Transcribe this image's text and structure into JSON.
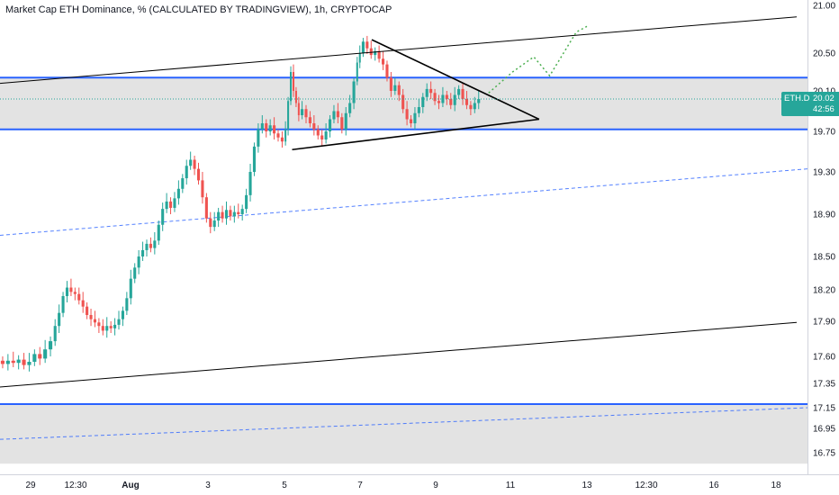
{
  "chart_data": {
    "type": "candlestick",
    "title": "Market Cap ETH Dominance, % (CALCULATED BY TRADINGVIEW), 1h, CRYPTOCAP",
    "symbol": "ETH.D",
    "last_price": "20.02",
    "countdown": "42:56",
    "y_ticks": [
      "21.00",
      "20.50",
      "20.10",
      "19.70",
      "19.30",
      "18.90",
      "18.50",
      "18.20",
      "17.90",
      "17.60",
      "17.35",
      "17.15",
      "16.95",
      "16.75"
    ],
    "x_ticks": [
      "29",
      "12:30",
      "Aug",
      "3",
      "5",
      "7",
      "9",
      "11",
      "13",
      "12:30",
      "16",
      "18"
    ],
    "price_path": [
      [
        0,
        17.56
      ],
      [
        0.4,
        17.53
      ],
      [
        0.8,
        17.56
      ],
      [
        1.2,
        17.54
      ],
      [
        1.6,
        17.57
      ],
      [
        2.0,
        17.52
      ],
      [
        2.4,
        17.55
      ],
      [
        2.8,
        17.62
      ],
      [
        3.2,
        17.58
      ],
      [
        3.6,
        17.66
      ],
      [
        4.0,
        17.73
      ],
      [
        4.3,
        17.86
      ],
      [
        4.6,
        17.98
      ],
      [
        4.9,
        18.14
      ],
      [
        5.2,
        18.22
      ],
      [
        5.5,
        18.18
      ],
      [
        5.8,
        18.16
      ],
      [
        6.1,
        18.1
      ],
      [
        6.4,
        18.04
      ],
      [
        6.7,
        17.96
      ],
      [
        7.0,
        17.92
      ],
      [
        7.3,
        17.89
      ],
      [
        7.6,
        17.86
      ],
      [
        7.9,
        17.82
      ],
      [
        8.2,
        17.86
      ],
      [
        8.5,
        17.84
      ],
      [
        8.8,
        17.87
      ],
      [
        9.1,
        17.92
      ],
      [
        9.4,
        18.0
      ],
      [
        9.7,
        18.12
      ],
      [
        10.0,
        18.3
      ],
      [
        10.3,
        18.4
      ],
      [
        10.6,
        18.5
      ],
      [
        10.9,
        18.56
      ],
      [
        11.2,
        18.62
      ],
      [
        11.5,
        18.58
      ],
      [
        11.8,
        18.65
      ],
      [
        12.1,
        18.8
      ],
      [
        12.4,
        18.95
      ],
      [
        12.7,
        19.02
      ],
      [
        13.0,
        18.96
      ],
      [
        13.3,
        19.05
      ],
      [
        13.6,
        19.14
      ],
      [
        13.9,
        19.24
      ],
      [
        14.2,
        19.36
      ],
      [
        14.5,
        19.42
      ],
      [
        14.8,
        19.33
      ],
      [
        15.1,
        19.22
      ],
      [
        15.4,
        19.06
      ],
      [
        15.7,
        18.86
      ],
      [
        16.0,
        18.78
      ],
      [
        16.3,
        18.84
      ],
      [
        16.6,
        18.92
      ],
      [
        16.9,
        18.86
      ],
      [
        17.2,
        18.94
      ],
      [
        17.5,
        18.88
      ],
      [
        17.8,
        18.92
      ],
      [
        18.1,
        18.9
      ],
      [
        18.4,
        18.95
      ],
      [
        18.7,
        19.08
      ],
      [
        19.0,
        19.3
      ],
      [
        19.3,
        19.55
      ],
      [
        19.6,
        19.72
      ],
      [
        19.9,
        19.78
      ],
      [
        20.2,
        19.7
      ],
      [
        20.5,
        19.76
      ],
      [
        20.8,
        19.68
      ],
      [
        21.1,
        19.64
      ],
      [
        21.4,
        19.6
      ],
      [
        21.6,
        19.72
      ],
      [
        21.8,
        20.0
      ],
      [
        22.0,
        20.3
      ],
      [
        22.2,
        20.1
      ],
      [
        22.4,
        19.98
      ],
      [
        22.6,
        19.86
      ],
      [
        22.9,
        19.92
      ],
      [
        23.2,
        19.84
      ],
      [
        23.5,
        19.78
      ],
      [
        23.8,
        19.72
      ],
      [
        24.1,
        19.66
      ],
      [
        24.4,
        19.62
      ],
      [
        24.7,
        19.7
      ],
      [
        25.0,
        19.82
      ],
      [
        25.3,
        19.9
      ],
      [
        25.6,
        19.84
      ],
      [
        25.9,
        19.72
      ],
      [
        26.2,
        19.88
      ],
      [
        26.5,
        19.98
      ],
      [
        26.8,
        20.2
      ],
      [
        27.0,
        20.4
      ],
      [
        27.2,
        20.5
      ],
      [
        27.5,
        20.62
      ],
      [
        27.8,
        20.55
      ],
      [
        28.1,
        20.48
      ],
      [
        28.4,
        20.52
      ],
      [
        28.7,
        20.44
      ],
      [
        29.0,
        20.38
      ],
      [
        29.3,
        20.24
      ],
      [
        29.6,
        20.1
      ],
      [
        29.9,
        20.16
      ],
      [
        30.2,
        20.06
      ],
      [
        30.5,
        19.92
      ],
      [
        30.8,
        19.82
      ],
      [
        31.1,
        19.78
      ],
      [
        31.4,
        19.88
      ],
      [
        31.7,
        19.94
      ],
      [
        32.0,
        20.04
      ],
      [
        32.3,
        20.12
      ],
      [
        32.6,
        20.08
      ],
      [
        32.9,
        20.0
      ],
      [
        33.2,
        19.98
      ],
      [
        33.5,
        20.06
      ],
      [
        33.8,
        20.02
      ],
      [
        34.1,
        19.96
      ],
      [
        34.4,
        20.06
      ],
      [
        34.7,
        20.12
      ],
      [
        35.0,
        20.02
      ],
      [
        35.3,
        19.96
      ],
      [
        35.6,
        19.92
      ],
      [
        35.9,
        19.98
      ],
      [
        36.2,
        20.02
      ]
    ],
    "levels": [
      20.24,
      19.72,
      17.18
    ],
    "zones": [
      [
        19.72,
        20.24
      ],
      [
        16.66,
        17.18
      ]
    ],
    "trendlines": [
      {
        "from": [
          0,
          20.18
        ],
        "to": [
          60,
          20.88
        ]
      },
      {
        "from": [
          0,
          17.32
        ],
        "to": [
          60,
          17.89
        ]
      },
      {
        "from": [
          28.0,
          20.64
        ],
        "to": [
          40.6,
          19.82
        ]
      },
      {
        "from": [
          22.0,
          19.52
        ],
        "to": [
          40.6,
          19.82
        ]
      }
    ],
    "dashed_lines": [
      {
        "from": [
          0,
          18.7
        ],
        "to": [
          60,
          19.33
        ]
      },
      {
        "from": [
          0,
          16.86
        ],
        "to": [
          60,
          17.15
        ]
      }
    ],
    "projection": [
      [
        36.8,
        20.08
      ],
      [
        38.6,
        20.3
      ],
      [
        40.2,
        20.46
      ],
      [
        41.4,
        20.26
      ],
      [
        43.4,
        20.72
      ],
      [
        44.2,
        20.78
      ]
    ],
    "colors": {
      "up": "#26a69a",
      "down": "#ef5350",
      "level": "#2962ff",
      "zone": "#d9d9d9",
      "projection": "#4caf50",
      "badge": "#26a69a"
    },
    "grid": false,
    "legend": "none"
  }
}
